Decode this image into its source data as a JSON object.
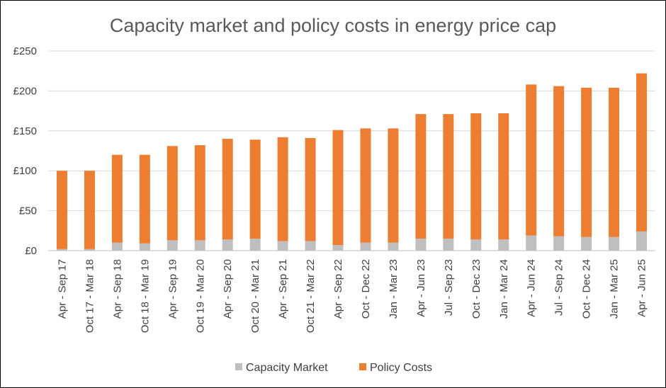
{
  "chart_data": {
    "type": "bar",
    "stacked": true,
    "title": "Capacity market and policy costs in energy price cap",
    "xlabel": "",
    "ylabel": "",
    "ylim": [
      0,
      250
    ],
    "yticks": [
      0,
      50,
      100,
      150,
      200,
      250
    ],
    "ytick_labels": [
      "£0",
      "£50",
      "£100",
      "£150",
      "£200",
      "£250"
    ],
    "grid": true,
    "legend_position": "bottom",
    "categories": [
      "Apr - Sep 17",
      "Oct 17 - Mar 18",
      "Apr - Sep 18",
      "Oct 18 - Mar 19",
      "Apr - Sep 19",
      "Oct 19 - Mar 20",
      "Apr - Sep 20",
      "Oct 20 - Mar 21",
      "Apr - Sep 21",
      "Oct 21 - Mar 22",
      "Apr - Sep 22",
      "Oct - Dec 22",
      "Jan - Mar 23",
      "Apr - Jun 23",
      "Jul - Sep 23",
      "Oct - Dec 23",
      "Jan - Mar 24",
      "Apr - Jun 24",
      "Jul - Sep 24",
      "Oct - Dec 24",
      "Jan - Mar 25",
      "Apr - Jun 25"
    ],
    "series": [
      {
        "name": "Capacity Market",
        "color": "#BFBFBF",
        "values": [
          2,
          2,
          10,
          9,
          13,
          13,
          14,
          15,
          12,
          12,
          7,
          10,
          10,
          15,
          15,
          14,
          14,
          19,
          18,
          17,
          17,
          24
        ]
      },
      {
        "name": "Policy Costs",
        "color": "#ED7D31",
        "values": [
          98,
          98,
          110,
          111,
          118,
          119,
          126,
          124,
          130,
          129,
          144,
          143,
          143,
          156,
          156,
          158,
          158,
          189,
          188,
          187,
          187,
          198
        ]
      }
    ]
  }
}
